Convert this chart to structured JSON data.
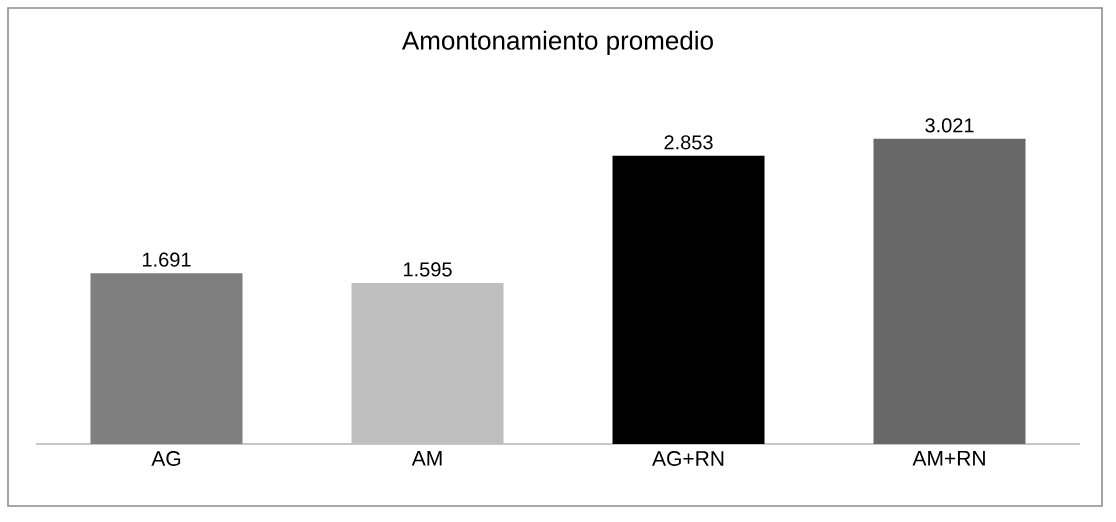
{
  "chart_data": {
    "type": "bar",
    "title": "Amontonamiento promedio",
    "categories": [
      "AG",
      "AM",
      "AG+RN",
      "AM+RN"
    ],
    "values": [
      1.691,
      1.595,
      2.853,
      3.021
    ],
    "colors": [
      "#7f7f7f",
      "#bfbfbf",
      "#000000",
      "#686868"
    ],
    "data_labels": true
  }
}
